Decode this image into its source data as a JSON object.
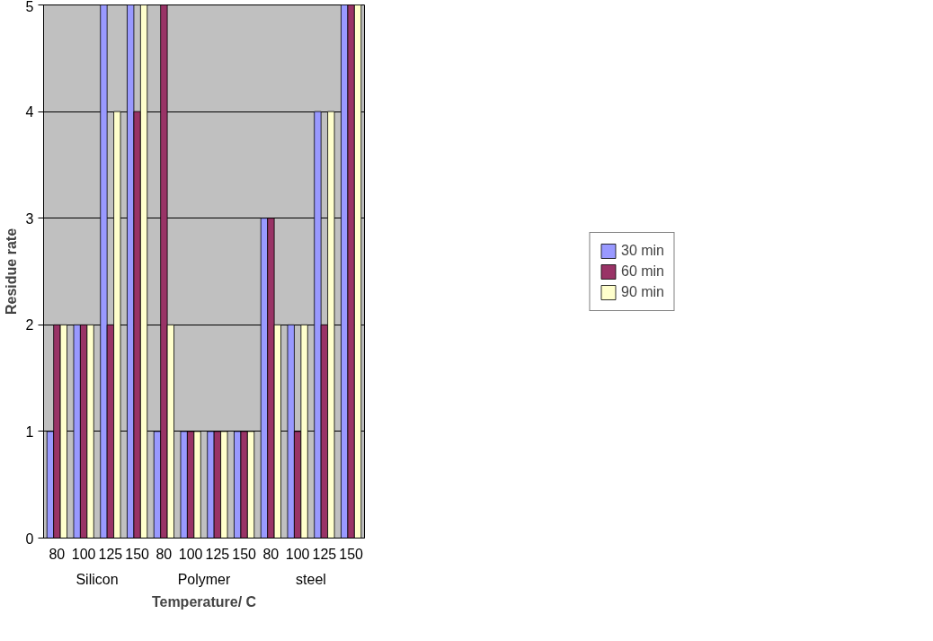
{
  "chart_data": {
    "type": "bar",
    "xlabel": "Temperature/ C",
    "ylabel": "Residue rate",
    "categories": [
      "80",
      "100",
      "125",
      "150",
      "80",
      "100",
      "125",
      "150",
      "80",
      "100",
      "125",
      "150"
    ],
    "annotations": [
      "Silicon",
      "Polymer",
      "steel"
    ],
    "series": [
      {
        "name": "30 min",
        "color": "#9999ff",
        "values": [
          1,
          2,
          5,
          5,
          1,
          1,
          1,
          1,
          3,
          2,
          4,
          5
        ]
      },
      {
        "name": "60 min",
        "color": "#993366",
        "values": [
          2,
          2,
          2,
          4,
          5,
          1,
          1,
          1,
          3,
          1,
          2,
          5
        ]
      },
      {
        "name": "90 min",
        "color": "#ffffcc",
        "values": [
          2,
          2,
          4,
          5,
          2,
          1,
          1,
          1,
          2,
          2,
          4,
          5
        ]
      }
    ],
    "ylim": [
      0,
      5
    ],
    "yticks": [
      0,
      1,
      2,
      3,
      4,
      5
    ],
    "grid": "y",
    "legend": "right"
  }
}
